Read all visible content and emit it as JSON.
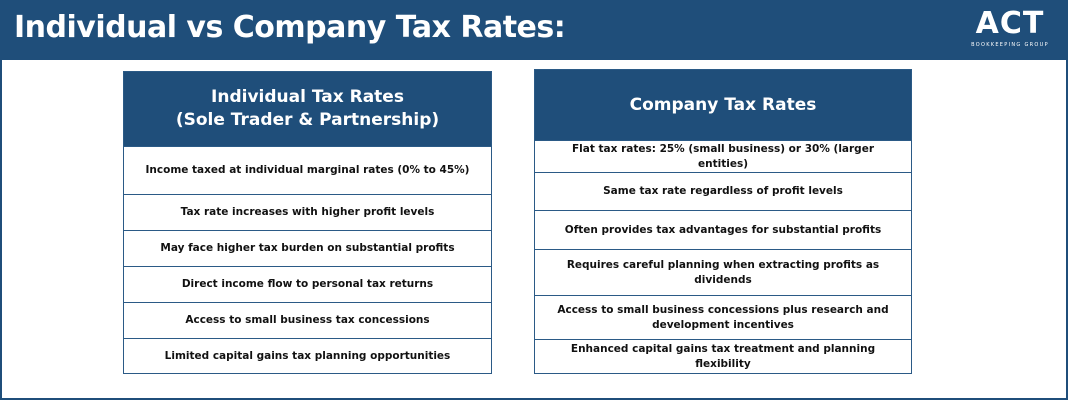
{
  "header": {
    "title": "Individual vs Company Tax Rates:",
    "logo": {
      "main": "ACT",
      "sub": "BOOKKEEPING GROUP"
    }
  },
  "individual": {
    "title_lines": [
      "Individual Tax Rates",
      "(Sole Trader & Partnership)"
    ],
    "rows": [
      "Income taxed at individual marginal rates (0% to 45%)",
      "Tax rate increases with higher profit levels",
      "May face higher tax burden on substantial profits",
      "Direct income flow to personal tax returns",
      "Access to small business tax concessions",
      "Limited capital gains tax planning opportunities"
    ]
  },
  "company": {
    "title": "Company Tax Rates",
    "rows": [
      "Flat tax rates: 25% (small business) or 30% (larger entities)",
      "Same tax rate regardless of profit levels",
      "Often provides tax advantages for substantial profits",
      "Requires careful planning when extracting profits as dividends",
      "Access to small business concessions plus research and development incentives",
      "Enhanced capital gains tax treatment and planning flexibility"
    ]
  },
  "colors": {
    "brand_navy": "#1f4e7a",
    "border": "#2b5a86",
    "background": "#ffffff",
    "text": "#111111"
  }
}
